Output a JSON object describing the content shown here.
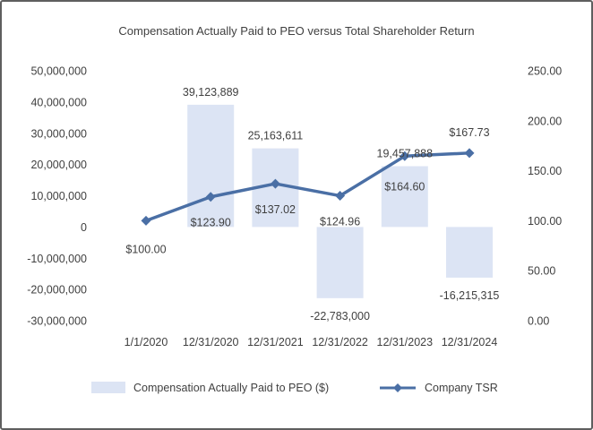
{
  "chart_data": {
    "type": "bar",
    "title": "Compensation Actually Paid to PEO versus Total Shareholder Return",
    "categories": [
      "1/1/2020",
      "12/31/2020",
      "12/31/2021",
      "12/31/2022",
      "12/31/2023",
      "12/31/2024"
    ],
    "series": [
      {
        "name": "Compensation Actually Paid to PEO ($)",
        "kind": "bar",
        "axis": "left",
        "color": "#dce4f4",
        "values": [
          null,
          39123889,
          25163611,
          -22783000,
          19457888,
          -16215315
        ],
        "labels": [
          "",
          "39,123,889",
          "25,163,611",
          "-22,783,000",
          "19,457,888",
          "-16,215,315"
        ]
      },
      {
        "name": "Company TSR",
        "kind": "line",
        "axis": "right",
        "color": "#4a6fa5",
        "marker": "diamond",
        "values": [
          100.0,
          123.9,
          137.02,
          124.96,
          164.6,
          167.73
        ],
        "labels": [
          "$100.00",
          "$123.90",
          "$137.02",
          "$124.96",
          "$164.60",
          "$167.73"
        ]
      }
    ],
    "y_left": {
      "ylim": [
        -30000000,
        50000000
      ],
      "ticks": [
        50000000,
        40000000,
        30000000,
        20000000,
        10000000,
        0,
        -10000000,
        -20000000,
        -30000000
      ],
      "tick_labels": [
        "50,000,000",
        "40,000,000",
        "30,000,000",
        "20,000,000",
        "10,000,000",
        "0",
        "-10,000,000",
        "-20,000,000",
        "-30,000,000"
      ]
    },
    "y_right": {
      "ylim": [
        0,
        250
      ],
      "ticks": [
        250,
        200,
        150,
        100,
        50,
        0
      ],
      "tick_labels": [
        "250.00",
        "200.00",
        "150.00",
        "100.00",
        "50.00",
        "0.00"
      ]
    },
    "legend_position": "bottom",
    "grid": false
  }
}
